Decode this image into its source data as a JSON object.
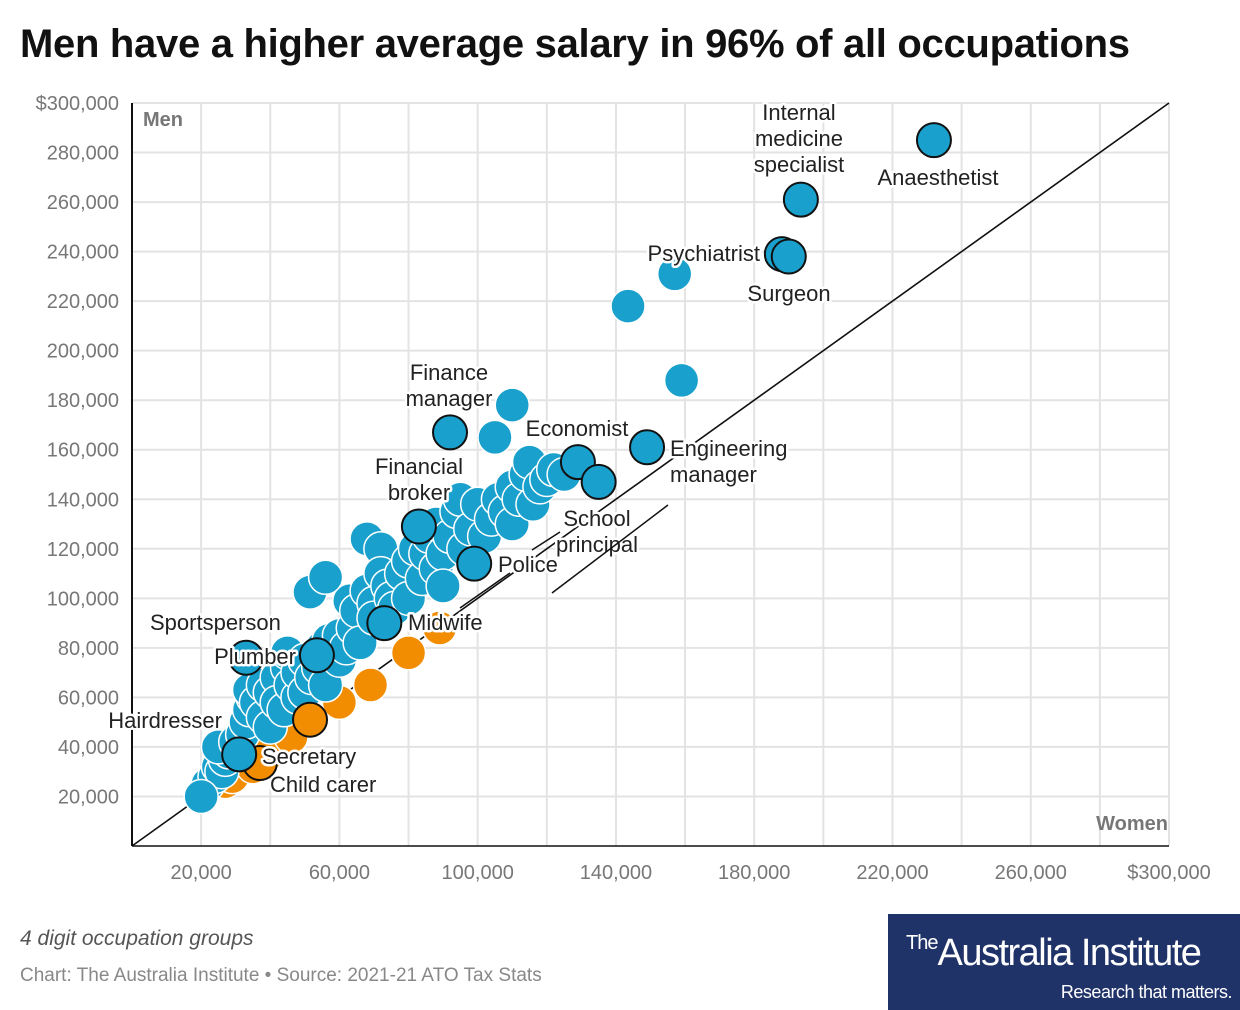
{
  "title": "Men have a higher average salary in 96% of all occupations",
  "note": "4 digit occupation groups",
  "source": "Chart: The Australia Institute • Source: 2021-21 ATO Tax Stats",
  "logo": {
    "the": "The",
    "name": "Australia Institute",
    "tagline": "Research that matters."
  },
  "colors": {
    "men_higher": "#1aa0cc",
    "women_higher": "#f28c00",
    "grid": "#e3e3e3",
    "highlight_stroke": "#111111"
  },
  "chart_data": {
    "type": "scatter",
    "title": "Men have a higher average salary in 96% of all occupations",
    "xlabel": "Women",
    "ylabel": "Men",
    "xlim": [
      0,
      300000
    ],
    "ylim": [
      0,
      300000
    ],
    "x_ticks": [
      "20,000",
      "60,000",
      "100,000",
      "140,000",
      "180,000",
      "220,000",
      "260,000",
      "$300,000"
    ],
    "x_tick_values": [
      20000,
      60000,
      100000,
      140000,
      180000,
      220000,
      260000,
      300000
    ],
    "y_ticks": [
      "20,000",
      "40,000",
      "60,000",
      "80,000",
      "100,000",
      "120,000",
      "140,000",
      "160,000",
      "180,000",
      "200,000",
      "220,000",
      "240,000",
      "260,000",
      "280,000",
      "$300,000"
    ],
    "y_tick_values": [
      20000,
      40000,
      60000,
      80000,
      100000,
      120000,
      140000,
      160000,
      180000,
      200000,
      220000,
      240000,
      260000,
      280000,
      300000
    ],
    "grid": true,
    "reference_line": "y = x",
    "points_thousands": [
      [
        22,
        25
      ],
      [
        24,
        28
      ],
      [
        25,
        32
      ],
      [
        26,
        30
      ],
      [
        27,
        35
      ],
      [
        28,
        38
      ],
      [
        25,
        40
      ],
      [
        30,
        42
      ],
      [
        32,
        45
      ],
      [
        33,
        50
      ],
      [
        34,
        55
      ],
      [
        35,
        60
      ],
      [
        34,
        63
      ],
      [
        36,
        58
      ],
      [
        38,
        52
      ],
      [
        40,
        48
      ],
      [
        38,
        65
      ],
      [
        40,
        62
      ],
      [
        42,
        68
      ],
      [
        42,
        58
      ],
      [
        44,
        55
      ],
      [
        45,
        72
      ],
      [
        45,
        78
      ],
      [
        46,
        65
      ],
      [
        48,
        60
      ],
      [
        48,
        70
      ],
      [
        50,
        75
      ],
      [
        50,
        62
      ],
      [
        52,
        68
      ],
      [
        54,
        72
      ],
      [
        55,
        80
      ],
      [
        56,
        65
      ],
      [
        57,
        83
      ],
      [
        58,
        78
      ],
      [
        60,
        75
      ],
      [
        60,
        85
      ],
      [
        62,
        80
      ],
      [
        63,
        99
      ],
      [
        64,
        88
      ],
      [
        65,
        95
      ],
      [
        66,
        82
      ],
      [
        68,
        103
      ],
      [
        68,
        124
      ],
      [
        70,
        98
      ],
      [
        70,
        92
      ],
      [
        72,
        120
      ],
      [
        72,
        110
      ],
      [
        74,
        105
      ],
      [
        75,
        100
      ],
      [
        76,
        96
      ],
      [
        78,
        110
      ],
      [
        80,
        115
      ],
      [
        80,
        100
      ],
      [
        82,
        120
      ],
      [
        84,
        108
      ],
      [
        85,
        118
      ],
      [
        86,
        125
      ],
      [
        88,
        112
      ],
      [
        88,
        130
      ],
      [
        90,
        118
      ],
      [
        90,
        105
      ],
      [
        92,
        125
      ],
      [
        94,
        135
      ],
      [
        95,
        140
      ],
      [
        96,
        120
      ],
      [
        98,
        128
      ],
      [
        100,
        138
      ],
      [
        102,
        125
      ],
      [
        104,
        132
      ],
      [
        106,
        140
      ],
      [
        108,
        135
      ],
      [
        110,
        130
      ],
      [
        110,
        145
      ],
      [
        112,
        140
      ],
      [
        114,
        150
      ],
      [
        115,
        155
      ],
      [
        116,
        138
      ],
      [
        118,
        145
      ],
      [
        120,
        148
      ],
      [
        122,
        152
      ],
      [
        125,
        150
      ],
      [
        51.5,
        102.5
      ],
      [
        56,
        108.5
      ],
      [
        143.5,
        218
      ],
      [
        157,
        231
      ],
      [
        159,
        188
      ],
      [
        110,
        178
      ],
      [
        105,
        165
      ],
      [
        20,
        20
      ],
      [
        27,
        26
      ],
      [
        29,
        28
      ],
      [
        35,
        32
      ],
      [
        40,
        38
      ],
      [
        46,
        44
      ],
      [
        60,
        58
      ],
      [
        69,
        65
      ],
      [
        80,
        78
      ],
      [
        89,
        88
      ]
    ],
    "labeled_points_thousands": [
      {
        "name": "Anaesthetist",
        "women": 232,
        "men": 285
      },
      {
        "name": "Internal medicine specialist",
        "women": 193.5,
        "men": 261
      },
      {
        "name": "Psychiatrist",
        "women": 188,
        "men": 239
      },
      {
        "name": "Surgeon",
        "women": 190,
        "men": 238
      },
      {
        "name": "Finance manager",
        "women": 92,
        "men": 167
      },
      {
        "name": "Economist",
        "women": 129,
        "men": 155
      },
      {
        "name": "School principal",
        "women": 135,
        "men": 147
      },
      {
        "name": "Engineering manager",
        "women": 149,
        "men": 161
      },
      {
        "name": "Financial broker",
        "women": 83,
        "men": 129
      },
      {
        "name": "Police",
        "women": 99,
        "men": 114
      },
      {
        "name": "Midwife",
        "women": 73,
        "men": 90
      },
      {
        "name": "Plumber",
        "women": 53.5,
        "men": 77
      },
      {
        "name": "Sportsperson",
        "women": 33,
        "men": 76
      },
      {
        "name": "Secretary",
        "women": 51.5,
        "men": 51
      },
      {
        "name": "Child carer",
        "women": 37,
        "men": 33.5
      },
      {
        "name": "Hairdresser",
        "women": 31,
        "men": 37
      }
    ]
  }
}
